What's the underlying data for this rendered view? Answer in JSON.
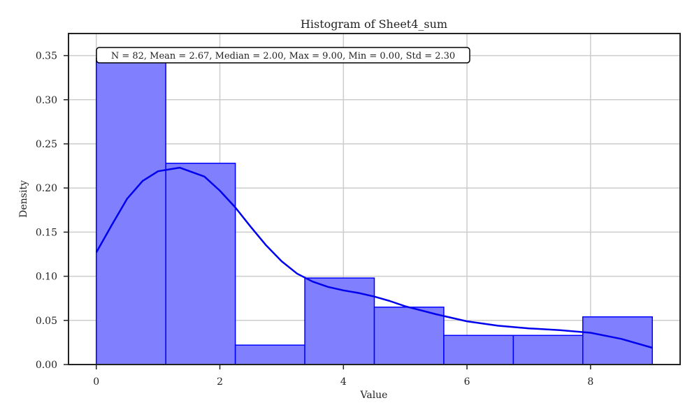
{
  "chart_data": {
    "type": "bar",
    "title": "Histogram of Sheet4_sum",
    "xlabel": "Value",
    "ylabel": "Density",
    "xlim": [
      -0.45,
      9.45
    ],
    "ylim": [
      0,
      0.375
    ],
    "xticks": [
      0,
      2,
      4,
      6,
      8
    ],
    "yticks": [
      0.0,
      0.05,
      0.1,
      0.15,
      0.2,
      0.25,
      0.3,
      0.35
    ],
    "grid": true,
    "bins": [
      {
        "start": 0.0,
        "end": 1.125,
        "density": 0.347
      },
      {
        "start": 1.125,
        "end": 2.25,
        "density": 0.228
      },
      {
        "start": 2.25,
        "end": 3.375,
        "density": 0.022
      },
      {
        "start": 3.375,
        "end": 4.5,
        "density": 0.098
      },
      {
        "start": 4.5,
        "end": 5.625,
        "density": 0.065
      },
      {
        "start": 5.625,
        "end": 6.75,
        "density": 0.033
      },
      {
        "start": 6.75,
        "end": 7.875,
        "density": 0.033
      },
      {
        "start": 7.875,
        "end": 9.0,
        "density": 0.054
      }
    ],
    "kde": {
      "x": [
        0.0,
        0.25,
        0.5,
        0.75,
        1.0,
        1.35,
        1.75,
        2.0,
        2.25,
        2.5,
        2.75,
        3.0,
        3.25,
        3.5,
        3.75,
        4.0,
        4.25,
        4.5,
        4.75,
        5.0,
        5.5,
        6.0,
        6.5,
        7.0,
        7.5,
        8.0,
        8.5,
        9.0
      ],
      "y": [
        0.127,
        0.158,
        0.188,
        0.208,
        0.219,
        0.223,
        0.213,
        0.197,
        0.178,
        0.156,
        0.135,
        0.117,
        0.103,
        0.094,
        0.088,
        0.084,
        0.081,
        0.077,
        0.072,
        0.066,
        0.057,
        0.049,
        0.044,
        0.041,
        0.039,
        0.036,
        0.029,
        0.019
      ]
    },
    "colors": {
      "bar_fill": "#8080ff",
      "bar_edge": "#0000ff",
      "kde_line": "#0000ee",
      "grid": "#cccccc",
      "axis": "#222222"
    },
    "stats_label": "N = 82, Mean = 2.67, Median = 2.00, Max = 9.00, Min = 0.00, Std = 2.30"
  }
}
